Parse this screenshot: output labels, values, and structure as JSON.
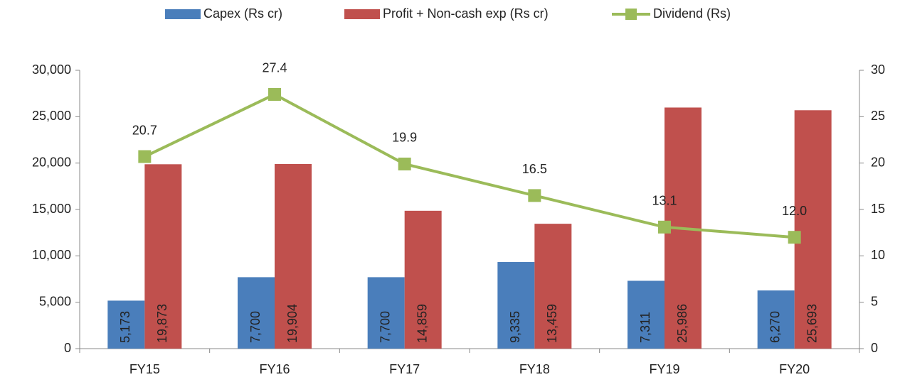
{
  "chart_data": {
    "type": "bar",
    "categories": [
      "FY15",
      "FY16",
      "FY17",
      "FY18",
      "FY19",
      "FY20"
    ],
    "series": [
      {
        "name": "Capex (Rs cr)",
        "color": "#4a7ebb",
        "values": [
          5173,
          7700,
          7700,
          9335,
          7311,
          6270
        ],
        "value_labels": [
          "5,173",
          "7,700",
          "7,700",
          "9,335",
          "7,311",
          "6,270"
        ]
      },
      {
        "name": "Profit + Non-cash exp (Rs cr)",
        "color": "#c0504d",
        "values": [
          19873,
          19904,
          14859,
          13459,
          25986,
          25693
        ],
        "value_labels": [
          "19,873",
          "19,904",
          "14,859",
          "13,459",
          "25,986",
          "25,693"
        ]
      },
      {
        "name": "Dividend (Rs)",
        "color": "#9bbb59",
        "type": "line",
        "axis": "y2",
        "values": [
          20.7,
          27.4,
          19.9,
          16.5,
          13.1,
          12.0
        ],
        "value_labels": [
          "20.7",
          "27.4",
          "19.9",
          "16.5",
          "13.1",
          "12.0"
        ]
      }
    ],
    "ylim": [
      0,
      30000
    ],
    "yticks": [
      0,
      {
        "value": 5000,
        "label": "5,000"
      },
      {
        "value": 10000,
        "label": "10,000"
      },
      {
        "value": 15000,
        "label": "15,000"
      },
      {
        "value": 20000,
        "label": "20,000"
      },
      {
        "value": 25000,
        "label": "25,000"
      },
      {
        "value": 30000,
        "label": "30,000"
      }
    ],
    "y2lim": [
      0,
      30
    ],
    "y2ticks": [
      0,
      5,
      10,
      15,
      20,
      25,
      30
    ],
    "legend": "top",
    "grid": false
  }
}
